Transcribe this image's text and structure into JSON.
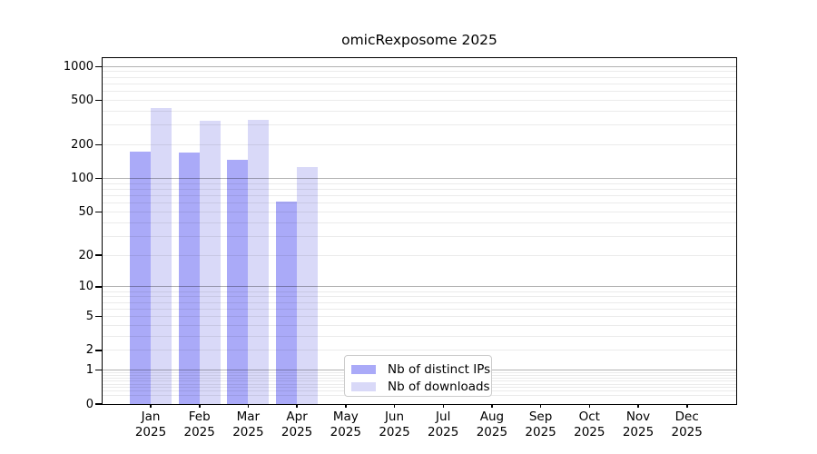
{
  "chart_data": {
    "type": "bar",
    "title": "omicRexposome 2025",
    "categories": [
      "Jan",
      "Feb",
      "Mar",
      "Apr",
      "May",
      "Jun",
      "Jul",
      "Aug",
      "Sep",
      "Oct",
      "Nov",
      "Dec"
    ],
    "year_label": "2025",
    "series": [
      {
        "name": "Nb of distinct IPs",
        "color": "#aaaaf8",
        "values": [
          174,
          170,
          147,
          62,
          0,
          0,
          0,
          0,
          0,
          0,
          0,
          0
        ]
      },
      {
        "name": "Nb of downloads",
        "color": "#d9d9f8",
        "values": [
          430,
          331,
          337,
          127,
          0,
          0,
          0,
          0,
          0,
          0,
          0,
          0
        ]
      }
    ],
    "y_ticks": [
      0,
      1,
      2,
      5,
      10,
      20,
      50,
      100,
      200,
      500,
      1000
    ],
    "major_grid_values": [
      1,
      10,
      100,
      1000
    ],
    "scale": "log10(value+1)",
    "ylim": [
      0,
      1188
    ],
    "grid": true,
    "legend_position": "inside-bottom-left-of-center"
  }
}
